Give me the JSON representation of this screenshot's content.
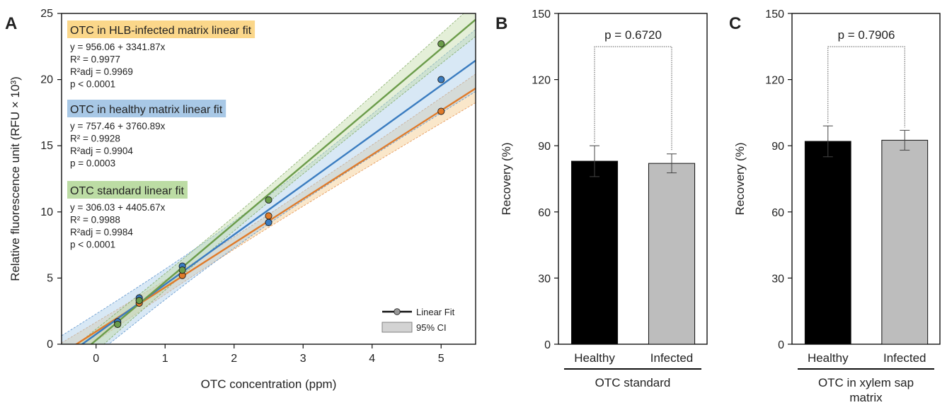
{
  "chart_data": [
    {
      "panel": "A",
      "type": "scatter",
      "xlabel": "OTC concentration (ppm)",
      "ylabel": "Relative fluorescence unit (RFU × 10³)",
      "xlim": [
        -0.5,
        5.5
      ],
      "ylim": [
        0,
        25
      ],
      "xticks": [
        "0",
        "1",
        "2",
        "3",
        "4",
        "5"
      ],
      "yticks": [
        "0",
        "5",
        "10",
        "15",
        "20",
        "25"
      ],
      "series": [
        {
          "name": "OTC in HLB-infected matrix linear fit",
          "color": "#e07b2a",
          "band_color": "#f5c98a",
          "label_bg": "#fbd78a",
          "intercept": 956.06,
          "slope": 3341.87,
          "equation": "y = 956.06 + 3341.87x",
          "r2": "R² = 0.9977",
          "r2adj": "R²adj = 0.9969",
          "p": "p < 0.0001",
          "x": [
            0.3125,
            0.625,
            1.25,
            2.5,
            5.0
          ],
          "y": [
            1.6,
            3.1,
            5.2,
            9.7,
            17.6
          ]
        },
        {
          "name": "OTC in healthy matrix linear fit",
          "color": "#3a7cc0",
          "band_color": "#a9cde8",
          "label_bg": "#a8c8e6",
          "intercept": 757.46,
          "slope": 3760.89,
          "equation": "y = 757.46 + 3760.89x",
          "r2": "R² = 0.9928",
          "r2adj": "R²adj = 0.9904",
          "p": "p = 0.0003",
          "x": [
            0.3125,
            0.625,
            1.25,
            2.5,
            5.0
          ],
          "y": [
            1.7,
            3.5,
            5.9,
            9.2,
            20.0
          ]
        },
        {
          "name": "OTC standard linear fit",
          "color": "#6b9c4a",
          "band_color": "#c3dba8",
          "label_bg": "#bcdca4",
          "intercept": 306.03,
          "slope": 4405.67,
          "equation": "y = 306.03 + 4405.67x",
          "r2": "R² = 0.9988",
          "r2adj": "R²adj = 0.9984",
          "p": "p < 0.0001",
          "x": [
            0.3125,
            0.625,
            1.25,
            2.5,
            5.0
          ],
          "y": [
            1.5,
            3.3,
            5.6,
            10.9,
            22.7
          ]
        }
      ],
      "legend": {
        "placement": "bottom-right",
        "fit_label": "Linear Fit",
        "ci_label": "95% CI"
      }
    },
    {
      "panel": "B",
      "type": "bar",
      "ylabel": "Recovery (%)",
      "ylim": [
        0,
        150
      ],
      "yticks": [
        "0",
        "30",
        "60",
        "90",
        "120",
        "150"
      ],
      "categories": [
        "Healthy",
        "Infected"
      ],
      "values": [
        83.0,
        82.0
      ],
      "errors": [
        7.0,
        4.3
      ],
      "colors": [
        "#000000",
        "#bdbdbd"
      ],
      "group_label": [
        "OTC standard"
      ],
      "p_value": "p = 0.6720"
    },
    {
      "panel": "C",
      "type": "bar",
      "ylabel": "Recovery (%)",
      "ylim": [
        0,
        150
      ],
      "yticks": [
        "0",
        "30",
        "60",
        "90",
        "120",
        "150"
      ],
      "categories": [
        "Healthy",
        "Infected"
      ],
      "values": [
        92.0,
        92.5
      ],
      "errors": [
        7.0,
        4.5
      ],
      "colors": [
        "#000000",
        "#bdbdbd"
      ],
      "group_label": [
        "OTC in xylem sap",
        "matrix"
      ],
      "p_value": "p = 0.7906"
    }
  ]
}
